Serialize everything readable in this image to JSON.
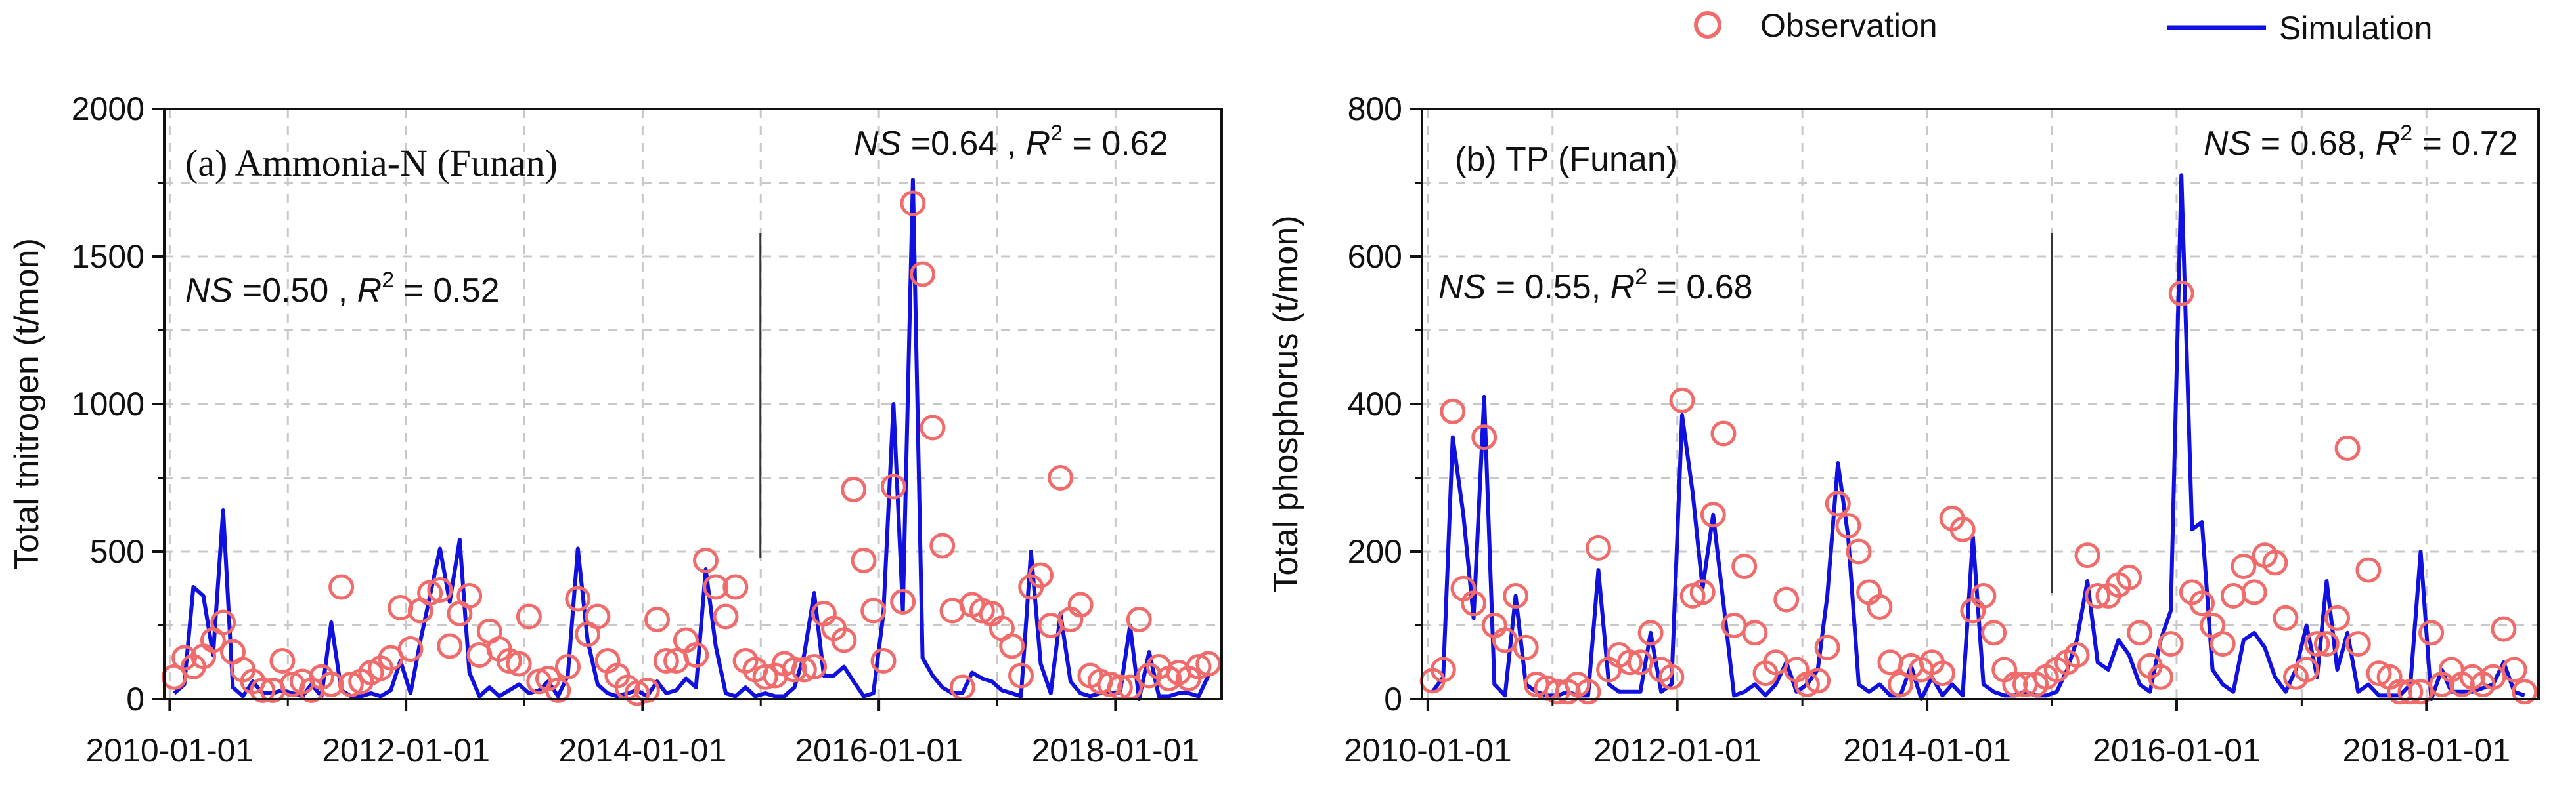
{
  "legend": {
    "observation_label": "Observation",
    "simulation_label": "Simulation"
  },
  "colors": {
    "observation": "#f26b6b",
    "simulation": "#1010e0",
    "axis": "#111111",
    "grid": "#c8c8c8"
  },
  "chart_data": [
    {
      "type": "line",
      "panel_title": "(a) Ammonia-N (Funan)",
      "ylabel": "Total tnitrogen (t/mon)",
      "xlabel": "",
      "xlim": [
        "2009-12-15",
        "2018-11-25"
      ],
      "ylim": [
        0,
        2000
      ],
      "yticks": [
        "0",
        "500",
        "1000",
        "1500",
        "2000"
      ],
      "xticks": [
        "2010-01-01",
        "2012-01-01",
        "2014-01-01",
        "2016-01-01",
        "2018-01-01"
      ],
      "divider_date": "2014-12-31",
      "grid": true,
      "stats": {
        "calibration_prefix": "NS",
        "calibration_ns": " =0.50 , ",
        "calibration_r2_prefix": "R",
        "calibration_r2": " = 0.52",
        "validation_prefix": "NS",
        "validation_ns": " =0.64 , ",
        "validation_r2_prefix": "R",
        "validation_r2": " = 0.62"
      },
      "series": [
        {
          "name": "Observation",
          "style": "open-circle",
          "x": [
            "2010-01",
            "2010-02",
            "2010-03",
            "2010-04",
            "2010-05",
            "2010-06",
            "2010-07",
            "2010-08",
            "2010-09",
            "2010-10",
            "2010-11",
            "2010-12",
            "2011-01",
            "2011-02",
            "2011-03",
            "2011-04",
            "2011-05",
            "2011-06",
            "2011-07",
            "2011-08",
            "2011-09",
            "2011-10",
            "2011-11",
            "2011-12",
            "2012-01",
            "2012-02",
            "2012-03",
            "2012-04",
            "2012-05",
            "2012-06",
            "2012-07",
            "2012-08",
            "2012-09",
            "2012-10",
            "2012-11",
            "2012-12",
            "2013-01",
            "2013-02",
            "2013-03",
            "2013-04",
            "2013-05",
            "2013-06",
            "2013-07",
            "2013-08",
            "2013-09",
            "2013-10",
            "2013-11",
            "2013-12",
            "2014-01",
            "2014-02",
            "2014-03",
            "2014-04",
            "2014-05",
            "2014-06",
            "2014-07",
            "2014-08",
            "2014-09",
            "2014-10",
            "2014-11",
            "2014-12",
            "2015-01",
            "2015-02",
            "2015-03",
            "2015-04",
            "2015-05",
            "2015-06",
            "2015-07",
            "2015-08",
            "2015-09",
            "2015-10",
            "2015-11",
            "2015-12",
            "2016-01",
            "2016-02",
            "2016-03",
            "2016-04",
            "2016-05",
            "2016-06",
            "2016-07",
            "2016-08",
            "2016-09",
            "2016-10",
            "2016-11",
            "2016-12",
            "2017-01",
            "2017-02",
            "2017-03",
            "2017-04",
            "2017-05",
            "2017-06",
            "2017-07",
            "2017-08",
            "2017-09",
            "2017-10",
            "2017-11",
            "2017-12",
            "2018-01",
            "2018-02",
            "2018-03",
            "2018-04",
            "2018-05",
            "2018-06",
            "2018-07",
            "2018-08",
            "2018-09",
            "2018-10"
          ],
          "y": [
            75,
            140,
            110,
            145,
            200,
            260,
            160,
            100,
            60,
            30,
            30,
            130,
            50,
            60,
            30,
            75,
            50,
            380,
            50,
            60,
            90,
            105,
            140,
            310,
            170,
            300,
            360,
            370,
            180,
            290,
            350,
            150,
            230,
            170,
            130,
            120,
            280,
            60,
            70,
            30,
            110,
            340,
            220,
            280,
            130,
            80,
            40,
            20,
            30,
            270,
            130,
            130,
            200,
            150,
            470,
            380,
            280,
            380,
            130,
            100,
            75,
            80,
            120,
            100,
            100,
            110,
            290,
            240,
            200,
            710,
            470,
            300,
            130,
            720,
            330,
            1680,
            1440,
            920,
            520,
            300,
            40,
            320,
            300,
            290,
            240,
            180,
            80,
            380,
            420,
            250,
            750,
            270,
            320,
            80,
            60,
            50,
            40,
            40,
            270,
            80,
            110,
            70,
            90,
            70,
            110,
            120
          ]
        },
        {
          "name": "Simulation",
          "style": "line",
          "x": [
            "2010-01",
            "2010-02",
            "2010-03",
            "2010-04",
            "2010-05",
            "2010-06",
            "2010-07",
            "2010-08",
            "2010-09",
            "2010-10",
            "2010-11",
            "2010-12",
            "2011-01",
            "2011-02",
            "2011-03",
            "2011-04",
            "2011-05",
            "2011-06",
            "2011-07",
            "2011-08",
            "2011-09",
            "2011-10",
            "2011-11",
            "2011-12",
            "2012-01",
            "2012-02",
            "2012-03",
            "2012-04",
            "2012-05",
            "2012-06",
            "2012-07",
            "2012-08",
            "2012-09",
            "2012-10",
            "2012-11",
            "2012-12",
            "2013-01",
            "2013-02",
            "2013-03",
            "2013-04",
            "2013-05",
            "2013-06",
            "2013-07",
            "2013-08",
            "2013-09",
            "2013-10",
            "2013-11",
            "2013-12",
            "2014-01",
            "2014-02",
            "2014-03",
            "2014-04",
            "2014-05",
            "2014-06",
            "2014-07",
            "2014-08",
            "2014-09",
            "2014-10",
            "2014-11",
            "2014-12",
            "2015-01",
            "2015-02",
            "2015-03",
            "2015-04",
            "2015-05",
            "2015-06",
            "2015-07",
            "2015-08",
            "2015-09",
            "2015-10",
            "2015-11",
            "2015-12",
            "2016-01",
            "2016-02",
            "2016-03",
            "2016-04",
            "2016-05",
            "2016-06",
            "2016-07",
            "2016-08",
            "2016-09",
            "2016-10",
            "2016-11",
            "2016-12",
            "2017-01",
            "2017-02",
            "2017-03",
            "2017-04",
            "2017-05",
            "2017-06",
            "2017-07",
            "2017-08",
            "2017-09",
            "2017-10",
            "2017-11",
            "2017-12",
            "2018-01",
            "2018-02",
            "2018-03",
            "2018-04",
            "2018-05",
            "2018-06",
            "2018-07",
            "2018-08",
            "2018-09",
            "2018-10"
          ],
          "y": [
            20,
            50,
            380,
            350,
            150,
            640,
            40,
            10,
            60,
            20,
            20,
            30,
            20,
            10,
            50,
            10,
            260,
            30,
            10,
            10,
            20,
            10,
            30,
            130,
            20,
            200,
            350,
            510,
            330,
            540,
            90,
            10,
            40,
            10,
            30,
            50,
            20,
            30,
            60,
            10,
            80,
            510,
            200,
            50,
            20,
            10,
            20,
            30,
            10,
            60,
            20,
            30,
            70,
            40,
            440,
            180,
            20,
            10,
            40,
            10,
            20,
            10,
            10,
            40,
            150,
            360,
            80,
            80,
            110,
            60,
            10,
            20,
            290,
            1000,
            300,
            1760,
            140,
            80,
            40,
            20,
            20,
            90,
            70,
            60,
            30,
            20,
            10,
            500,
            120,
            20,
            290,
            60,
            20,
            10,
            20,
            20,
            20,
            250,
            0,
            160,
            10,
            10,
            20,
            20,
            10,
            80
          ]
        }
      ]
    },
    {
      "type": "line",
      "panel_title": "(b) TP (Funan)",
      "ylabel": "Total phosphorus (t/mon)",
      "xlabel": "",
      "xlim": [
        "2009-12-15",
        "2018-11-25"
      ],
      "ylim": [
        0,
        800
      ],
      "yticks": [
        "0",
        "200",
        "400",
        "600",
        "800"
      ],
      "xticks": [
        "2010-01-01",
        "2012-01-01",
        "2014-01-01",
        "2016-01-01",
        "2018-01-01"
      ],
      "divider_date": "2014-12-31",
      "grid": true,
      "stats": {
        "calibration_prefix": "NS",
        "calibration_ns": " = 0.55, ",
        "calibration_r2_prefix": "R",
        "calibration_r2": " = 0.68",
        "validation_prefix": "NS",
        "validation_ns": " = 0.68, ",
        "validation_r2_prefix": "R",
        "validation_r2": " = 0.72"
      },
      "series": [
        {
          "name": "Observation",
          "style": "open-circle",
          "x": [
            "2010-01",
            "2010-02",
            "2010-03",
            "2010-04",
            "2010-05",
            "2010-06",
            "2010-07",
            "2010-08",
            "2010-09",
            "2010-10",
            "2010-11",
            "2010-12",
            "2011-01",
            "2011-02",
            "2011-03",
            "2011-04",
            "2011-05",
            "2011-06",
            "2011-07",
            "2011-08",
            "2011-09",
            "2011-10",
            "2011-11",
            "2011-12",
            "2012-01",
            "2012-02",
            "2012-03",
            "2012-04",
            "2012-05",
            "2012-06",
            "2012-07",
            "2012-08",
            "2012-09",
            "2012-10",
            "2012-11",
            "2012-12",
            "2013-01",
            "2013-02",
            "2013-03",
            "2013-04",
            "2013-05",
            "2013-06",
            "2013-07",
            "2013-08",
            "2013-09",
            "2013-10",
            "2013-11",
            "2013-12",
            "2014-01",
            "2014-02",
            "2014-03",
            "2014-04",
            "2014-05",
            "2014-06",
            "2014-07",
            "2014-08",
            "2014-09",
            "2014-10",
            "2014-11",
            "2014-12",
            "2015-01",
            "2015-02",
            "2015-03",
            "2015-04",
            "2015-05",
            "2015-06",
            "2015-07",
            "2015-08",
            "2015-09",
            "2015-10",
            "2015-11",
            "2015-12",
            "2016-01",
            "2016-02",
            "2016-03",
            "2016-04",
            "2016-05",
            "2016-06",
            "2016-07",
            "2016-08",
            "2016-09",
            "2016-10",
            "2016-11",
            "2016-12",
            "2017-01",
            "2017-02",
            "2017-03",
            "2017-04",
            "2017-05",
            "2017-06",
            "2017-07",
            "2017-08",
            "2017-09",
            "2017-10",
            "2017-11",
            "2017-12",
            "2018-01",
            "2018-02",
            "2018-03",
            "2018-04",
            "2018-05",
            "2018-06",
            "2018-07",
            "2018-08",
            "2018-09",
            "2018-10"
          ],
          "y": [
            25,
            40,
            390,
            150,
            130,
            355,
            100,
            80,
            140,
            70,
            20,
            15,
            10,
            10,
            20,
            10,
            205,
            40,
            60,
            50,
            50,
            90,
            40,
            30,
            405,
            140,
            145,
            250,
            360,
            100,
            180,
            90,
            35,
            50,
            135,
            40,
            20,
            25,
            70,
            265,
            235,
            200,
            145,
            125,
            50,
            20,
            45,
            40,
            50,
            35,
            245,
            230,
            120,
            140,
            90,
            40,
            20,
            20,
            20,
            30,
            40,
            50,
            60,
            195,
            140,
            140,
            155,
            165,
            90,
            45,
            30,
            75,
            550,
            145,
            130,
            100,
            75,
            140,
            180,
            145,
            195,
            185,
            110,
            30,
            40,
            75,
            75,
            110,
            340,
            75,
            175,
            35,
            30,
            10,
            10,
            10,
            90,
            20,
            40,
            20,
            30,
            20,
            30,
            95,
            40,
            10
          ]
        },
        {
          "name": "Simulation",
          "style": "line",
          "x": [
            "2010-01",
            "2010-02",
            "2010-03",
            "2010-04",
            "2010-05",
            "2010-06",
            "2010-07",
            "2010-08",
            "2010-09",
            "2010-10",
            "2010-11",
            "2010-12",
            "2011-01",
            "2011-02",
            "2011-03",
            "2011-04",
            "2011-05",
            "2011-06",
            "2011-07",
            "2011-08",
            "2011-09",
            "2011-10",
            "2011-11",
            "2011-12",
            "2012-01",
            "2012-02",
            "2012-03",
            "2012-04",
            "2012-05",
            "2012-06",
            "2012-07",
            "2012-08",
            "2012-09",
            "2012-10",
            "2012-11",
            "2012-12",
            "2013-01",
            "2013-02",
            "2013-03",
            "2013-04",
            "2013-05",
            "2013-06",
            "2013-07",
            "2013-08",
            "2013-09",
            "2013-10",
            "2013-11",
            "2013-12",
            "2014-01",
            "2014-02",
            "2014-03",
            "2014-04",
            "2014-05",
            "2014-06",
            "2014-07",
            "2014-08",
            "2014-09",
            "2014-10",
            "2014-11",
            "2014-12",
            "2015-01",
            "2015-02",
            "2015-03",
            "2015-04",
            "2015-05",
            "2015-06",
            "2015-07",
            "2015-08",
            "2015-09",
            "2015-10",
            "2015-11",
            "2015-12",
            "2016-01",
            "2016-02",
            "2016-03",
            "2016-04",
            "2016-05",
            "2016-06",
            "2016-07",
            "2016-08",
            "2016-09",
            "2016-10",
            "2016-11",
            "2016-12",
            "2017-01",
            "2017-02",
            "2017-03",
            "2017-04",
            "2017-05",
            "2017-06",
            "2017-07",
            "2017-08",
            "2017-09",
            "2017-10",
            "2017-11",
            "2017-12",
            "2018-01",
            "2018-02",
            "2018-03",
            "2018-04",
            "2018-05",
            "2018-06",
            "2018-07",
            "2018-08",
            "2018-09",
            "2018-10"
          ],
          "y": [
            10,
            30,
            355,
            250,
            110,
            410,
            20,
            5,
            140,
            20,
            10,
            5,
            5,
            10,
            5,
            5,
            175,
            20,
            10,
            10,
            10,
            90,
            10,
            20,
            385,
            280,
            150,
            250,
            130,
            5,
            10,
            20,
            5,
            20,
            50,
            10,
            20,
            40,
            140,
            320,
            220,
            20,
            10,
            20,
            5,
            5,
            45,
            0,
            30,
            5,
            20,
            5,
            220,
            20,
            10,
            5,
            5,
            10,
            5,
            5,
            10,
            40,
            80,
            160,
            50,
            40,
            80,
            60,
            20,
            10,
            80,
            120,
            710,
            230,
            240,
            40,
            20,
            10,
            80,
            90,
            70,
            30,
            10,
            40,
            100,
            30,
            160,
            40,
            90,
            10,
            20,
            5,
            5,
            5,
            20,
            200,
            0,
            40,
            10,
            10,
            10,
            15,
            20,
            50,
            10,
            5
          ]
        }
      ]
    }
  ]
}
